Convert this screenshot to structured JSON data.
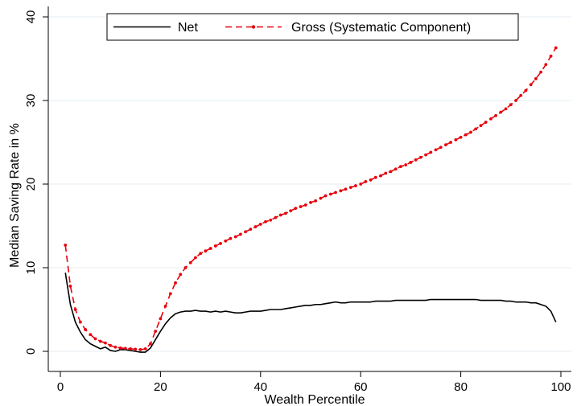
{
  "chart_data": {
    "type": "line",
    "xlabel": "Wealth Percentile",
    "ylabel": "Median Saving Rate in %",
    "xlim": [
      0,
      100
    ],
    "ylim": [
      -2,
      40
    ],
    "xticks": [
      0,
      20,
      40,
      60,
      80,
      100
    ],
    "yticks": [
      0,
      10,
      20,
      30,
      40
    ],
    "grid": "horizontal",
    "legend": "top-center",
    "colors": {
      "net": "#000000",
      "gross": "#e8000b"
    },
    "series": [
      {
        "name": "Net",
        "style": "solid",
        "x": [
          1,
          2,
          3,
          4,
          5,
          6,
          7,
          8,
          9,
          10,
          11,
          12,
          13,
          14,
          15,
          16,
          17,
          18,
          19,
          20,
          21,
          22,
          23,
          24,
          25,
          26,
          27,
          28,
          29,
          30,
          31,
          32,
          33,
          34,
          35,
          36,
          37,
          38,
          39,
          40,
          41,
          42,
          43,
          44,
          45,
          46,
          47,
          48,
          49,
          50,
          51,
          52,
          53,
          54,
          55,
          56,
          57,
          58,
          59,
          60,
          61,
          62,
          63,
          64,
          65,
          66,
          67,
          68,
          69,
          70,
          71,
          72,
          73,
          74,
          75,
          76,
          77,
          78,
          79,
          80,
          81,
          82,
          83,
          84,
          85,
          86,
          87,
          88,
          89,
          90,
          91,
          92,
          93,
          94,
          95,
          96,
          97,
          98,
          99
        ],
        "values": [
          9.4,
          5.6,
          3.5,
          2.3,
          1.4,
          0.9,
          0.6,
          0.3,
          0.5,
          0.1,
          0.0,
          0.2,
          0.2,
          0.1,
          0.0,
          -0.1,
          -0.1,
          0.4,
          1.4,
          2.4,
          3.3,
          4.0,
          4.5,
          4.7,
          4.8,
          4.8,
          4.9,
          4.8,
          4.8,
          4.7,
          4.8,
          4.7,
          4.8,
          4.7,
          4.6,
          4.6,
          4.7,
          4.8,
          4.8,
          4.8,
          4.9,
          5.0,
          5.0,
          5.0,
          5.1,
          5.2,
          5.3,
          5.4,
          5.5,
          5.5,
          5.6,
          5.6,
          5.7,
          5.8,
          5.9,
          5.8,
          5.8,
          5.9,
          5.9,
          5.9,
          5.9,
          5.9,
          6.0,
          6.0,
          6.0,
          6.0,
          6.1,
          6.1,
          6.1,
          6.1,
          6.1,
          6.1,
          6.1,
          6.2,
          6.2,
          6.2,
          6.2,
          6.2,
          6.2,
          6.2,
          6.2,
          6.2,
          6.2,
          6.1,
          6.1,
          6.1,
          6.1,
          6.1,
          6.0,
          6.0,
          5.9,
          5.9,
          5.9,
          5.8,
          5.8,
          5.6,
          5.4,
          4.8,
          3.5
        ]
      },
      {
        "name": "Gross (Systematic Component)",
        "style": "dashed-with-markers",
        "x": [
          1,
          2,
          3,
          4,
          5,
          6,
          7,
          8,
          9,
          10,
          11,
          12,
          13,
          14,
          15,
          16,
          17,
          18,
          19,
          20,
          21,
          22,
          23,
          24,
          25,
          26,
          27,
          28,
          29,
          30,
          31,
          32,
          33,
          34,
          35,
          36,
          37,
          38,
          39,
          40,
          41,
          42,
          43,
          44,
          45,
          46,
          47,
          48,
          49,
          50,
          51,
          52,
          53,
          54,
          55,
          56,
          57,
          58,
          59,
          60,
          61,
          62,
          63,
          64,
          65,
          66,
          67,
          68,
          69,
          70,
          71,
          72,
          73,
          74,
          75,
          76,
          77,
          78,
          79,
          80,
          81,
          82,
          83,
          84,
          85,
          86,
          87,
          88,
          89,
          90,
          91,
          92,
          93,
          94,
          95,
          96,
          97,
          98,
          99
        ],
        "values": [
          12.7,
          7.8,
          5.0,
          3.5,
          2.6,
          2.0,
          1.5,
          1.2,
          1.0,
          0.7,
          0.5,
          0.4,
          0.35,
          0.3,
          0.25,
          0.2,
          0.3,
          0.9,
          2.4,
          3.9,
          5.4,
          6.9,
          8.2,
          9.2,
          10.0,
          10.6,
          11.2,
          11.7,
          12.0,
          12.3,
          12.6,
          12.9,
          13.2,
          13.5,
          13.7,
          14.0,
          14.3,
          14.6,
          14.9,
          15.2,
          15.5,
          15.7,
          16.0,
          16.3,
          16.5,
          16.8,
          17.1,
          17.3,
          17.5,
          17.8,
          18.0,
          18.3,
          18.6,
          18.8,
          19.0,
          19.2,
          19.4,
          19.6,
          19.8,
          20.0,
          20.3,
          20.5,
          20.8,
          21.0,
          21.3,
          21.5,
          21.8,
          22.1,
          22.3,
          22.6,
          22.9,
          23.2,
          23.5,
          23.8,
          24.1,
          24.4,
          24.7,
          25.0,
          25.3,
          25.6,
          25.9,
          26.2,
          26.6,
          27.0,
          27.4,
          27.8,
          28.2,
          28.6,
          29.0,
          29.5,
          30.0,
          30.6,
          31.2,
          31.9,
          32.6,
          33.4,
          34.3,
          35.3,
          36.3
        ]
      }
    ]
  }
}
